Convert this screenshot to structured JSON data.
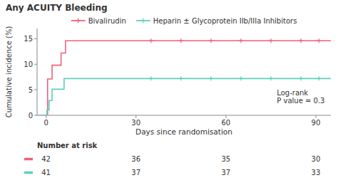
{
  "chart_data": {
    "type": "step",
    "title": "Any ACUITY Bleeding",
    "x_label": "Days since randomisation",
    "y_label": "Cumulative incidence (%)",
    "xlim": [
      -3,
      95
    ],
    "ylim": [
      0,
      17
    ],
    "xticks": [
      0,
      30,
      60,
      90
    ],
    "yticks": [
      0,
      5,
      10,
      15
    ],
    "grid": false,
    "legend": "top",
    "series": [
      {
        "name": "Bivalirudin",
        "color": "#F0607A",
        "marker": "plus",
        "x": [
          -3,
          0,
          0.5,
          1.0,
          2.0,
          5.0,
          6.5,
          95
        ],
        "values": [
          0,
          0,
          7.1,
          7.1,
          9.8,
          12.2,
          14.6,
          14.6
        ],
        "censor_x": [
          35,
          45,
          55,
          65,
          75,
          85,
          91
        ],
        "censor_values": [
          14.6,
          14.6,
          14.6,
          14.6,
          14.6,
          14.6,
          14.6
        ],
        "at_risk": [
          42,
          36,
          35,
          30
        ]
      },
      {
        "name": "Heparin ± Glycoprotein IIb/IIIa Inhibitors",
        "color": "#5ECFBF",
        "marker": "plus",
        "x": [
          -3,
          0,
          0.3,
          1.0,
          2.0,
          5.0,
          6.0,
          95
        ],
        "values": [
          0,
          0,
          1.0,
          2.9,
          5.1,
          5.1,
          7.2,
          7.2
        ],
        "censor_x": [
          35,
          45,
          55,
          65,
          75,
          85,
          91
        ],
        "censor_values": [
          7.2,
          7.2,
          7.2,
          7.2,
          7.2,
          7.2,
          7.2
        ],
        "at_risk": [
          41,
          37,
          37,
          33
        ]
      }
    ],
    "annotations": [
      {
        "text": "Log-rank\nP value = 0.3",
        "x": 77,
        "y": 2.0
      }
    ],
    "risk_table": {
      "title": "Number at risk",
      "x": [
        0,
        30,
        60,
        90
      ]
    }
  }
}
